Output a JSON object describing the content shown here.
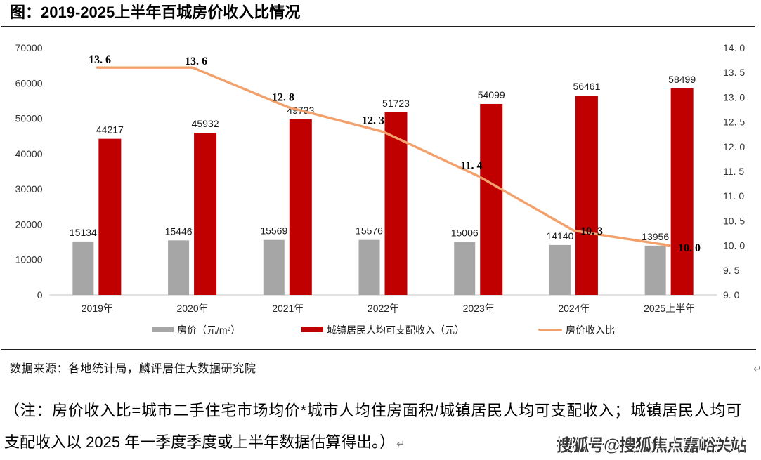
{
  "title": "图：2019-2025上半年百城房价收入比情况",
  "chart_data": {
    "type": "combo-bar-line",
    "categories": [
      "2019年",
      "2020年",
      "2021年",
      "2022年",
      "2023年",
      "2024年",
      "2025上半年"
    ],
    "series": [
      {
        "name": "房价（元/m²）",
        "type": "bar",
        "color": "#A6A6A6",
        "values": [
          15134,
          15446,
          15569,
          15576,
          15006,
          14140,
          13956
        ]
      },
      {
        "name": "城镇居民人均可支配收入（元）",
        "type": "bar",
        "color": "#C00000",
        "values": [
          44217,
          45932,
          49733,
          51723,
          54099,
          56461,
          58499
        ]
      },
      {
        "name": "房价收入比",
        "type": "line",
        "axis": "right",
        "color": "#F2A16C",
        "values": [
          13.6,
          13.6,
          12.8,
          12.3,
          11.4,
          10.3,
          10.0
        ],
        "labels": [
          "13. 6",
          "13. 6",
          "12. 8",
          "12. 3",
          "11. 4",
          "10. 3",
          "10. 0"
        ]
      }
    ],
    "left_axis": {
      "min": 0,
      "max": 70000,
      "step": 10000,
      "ticks": [
        "0",
        "10000",
        "20000",
        "30000",
        "40000",
        "50000",
        "60000",
        "70000"
      ]
    },
    "right_axis": {
      "min": 9.0,
      "max": 14.0,
      "step": 0.5,
      "ticks": [
        "9. 0",
        "9. 5",
        "10. 0",
        "10. 5",
        "11. 0",
        "11. 5",
        "12. 0",
        "12. 5",
        "13. 0",
        "13. 5",
        "14. 0"
      ]
    },
    "line_label_positions": [
      [
        142,
        84.5
      ],
      [
        279,
        86.5
      ],
      [
        403,
        138
      ],
      [
        531,
        171
      ],
      [
        671,
        235
      ],
      [
        842,
        328.5
      ],
      [
        981,
        352.5
      ]
    ],
    "grid": false,
    "legend_position": "bottom"
  },
  "legend": {
    "items": [
      {
        "label": "房价（元/m²）",
        "swatch": "bar",
        "color": "#A6A6A6"
      },
      {
        "label": "城镇居民人均可支配收入（元）",
        "swatch": "bar",
        "color": "#C00000"
      },
      {
        "label": "房价收入比",
        "swatch": "line",
        "color": "#F2A16C"
      }
    ]
  },
  "source_text": "数据来源：各地统计局，麟评居住大数据研究院",
  "note": {
    "line1": "（注：房价收入比=城市二手住宅市场均价*城市人均住房面积/城镇居民人均可支配收入；城镇居民人均可",
    "line2": "支配收入以 2025 年一季度季度或上半年数据估算得出。）",
    "return_mark": "↵"
  },
  "cell_return_mark": "↵",
  "watermark": "搜狐号@搜狐焦点嘉峪关站",
  "colors": {
    "bar_gray": "#A6A6A6",
    "bar_red": "#C00000",
    "line_orange": "#F2A16C",
    "axis_line": "#D9D9D9",
    "rule": "#1F1F1F"
  }
}
